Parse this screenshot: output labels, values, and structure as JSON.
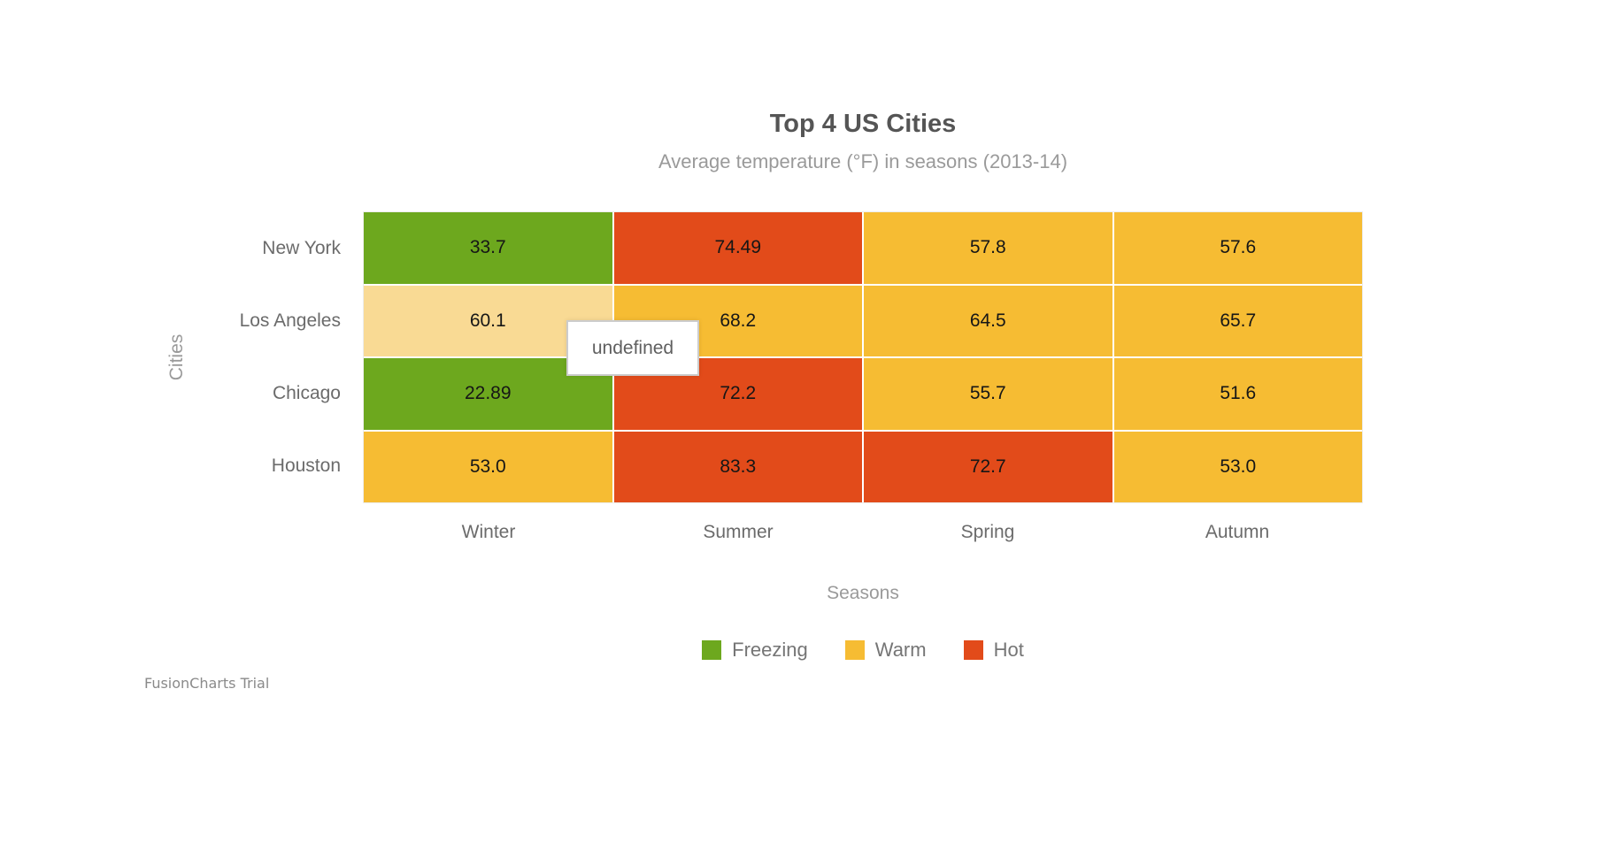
{
  "header": {
    "title": "Top 4 US Cities",
    "subtitle": "Average temperature (°F) in seasons (2013-14)"
  },
  "axes": {
    "y_title": "Cities",
    "x_title": "Seasons"
  },
  "tooltip": {
    "text": "undefined"
  },
  "watermark": {
    "label": "FusionCharts Trial"
  },
  "legend": {
    "position": "bottom-center",
    "items": [
      {
        "label": "Freezing",
        "color": "#6DA81E"
      },
      {
        "label": "Warm",
        "color": "#F6BC33"
      },
      {
        "label": "Hot",
        "color": "#E24B1A"
      }
    ]
  },
  "chart_data": {
    "type": "heatmap",
    "title": "Top 4 US Cities",
    "subtitle": "Average temperature (°F) in seasons (2013-14)",
    "xlabel": "Seasons",
    "ylabel": "Cities",
    "rows": [
      "New York",
      "Los Angeles",
      "Chicago",
      "Houston"
    ],
    "columns": [
      "Winter",
      "Summer",
      "Spring",
      "Autumn"
    ],
    "series": [
      {
        "name": "New York",
        "values": [
          33.7,
          74.49,
          57.8,
          57.6
        ]
      },
      {
        "name": "Los Angeles",
        "values": [
          60.1,
          68.2,
          64.5,
          65.7
        ]
      },
      {
        "name": "Chicago",
        "values": [
          22.89,
          72.2,
          55.7,
          51.6
        ]
      },
      {
        "name": "Houston",
        "values": [
          53.0,
          83.3,
          72.7,
          53.0
        ]
      }
    ],
    "color_ranges": [
      {
        "label": "Freezing",
        "color": "#6DA81E"
      },
      {
        "label": "Warm",
        "color": "#F6BC33"
      },
      {
        "label": "Hot",
        "color": "#E24B1A"
      }
    ],
    "highlighted_cell": {
      "row": "Los Angeles",
      "column": "Winter",
      "hover_color": "#F9DA94"
    },
    "cells": [
      {
        "row": "New York",
        "column": "Winter",
        "display": "33.7",
        "category": "Freezing",
        "color": "#6DA81E"
      },
      {
        "row": "New York",
        "column": "Summer",
        "display": "74.49",
        "category": "Hot",
        "color": "#E24B1A"
      },
      {
        "row": "New York",
        "column": "Spring",
        "display": "57.8",
        "category": "Warm",
        "color": "#F6BC33"
      },
      {
        "row": "New York",
        "column": "Autumn",
        "display": "57.6",
        "category": "Warm",
        "color": "#F6BC33"
      },
      {
        "row": "Los Angeles",
        "column": "Winter",
        "display": "60.1",
        "category": "Warm",
        "color": "#F9DA94"
      },
      {
        "row": "Los Angeles",
        "column": "Summer",
        "display": "68.2",
        "category": "Warm",
        "color": "#F6BC33"
      },
      {
        "row": "Los Angeles",
        "column": "Spring",
        "display": "64.5",
        "category": "Warm",
        "color": "#F6BC33"
      },
      {
        "row": "Los Angeles",
        "column": "Autumn",
        "display": "65.7",
        "category": "Warm",
        "color": "#F6BC33"
      },
      {
        "row": "Chicago",
        "column": "Winter",
        "display": "22.89",
        "category": "Freezing",
        "color": "#6DA81E"
      },
      {
        "row": "Chicago",
        "column": "Summer",
        "display": "72.2",
        "category": "Hot",
        "color": "#E24B1A"
      },
      {
        "row": "Chicago",
        "column": "Spring",
        "display": "55.7",
        "category": "Warm",
        "color": "#F6BC33"
      },
      {
        "row": "Chicago",
        "column": "Autumn",
        "display": "51.6",
        "category": "Warm",
        "color": "#F6BC33"
      },
      {
        "row": "Houston",
        "column": "Winter",
        "display": "53.0",
        "category": "Warm",
        "color": "#F6BC33"
      },
      {
        "row": "Houston",
        "column": "Summer",
        "display": "83.3",
        "category": "Hot",
        "color": "#E24B1A"
      },
      {
        "row": "Houston",
        "column": "Spring",
        "display": "72.7",
        "category": "Hot",
        "color": "#E24B1A"
      },
      {
        "row": "Houston",
        "column": "Autumn",
        "display": "53.0",
        "category": "Warm",
        "color": "#F6BC33"
      }
    ]
  }
}
